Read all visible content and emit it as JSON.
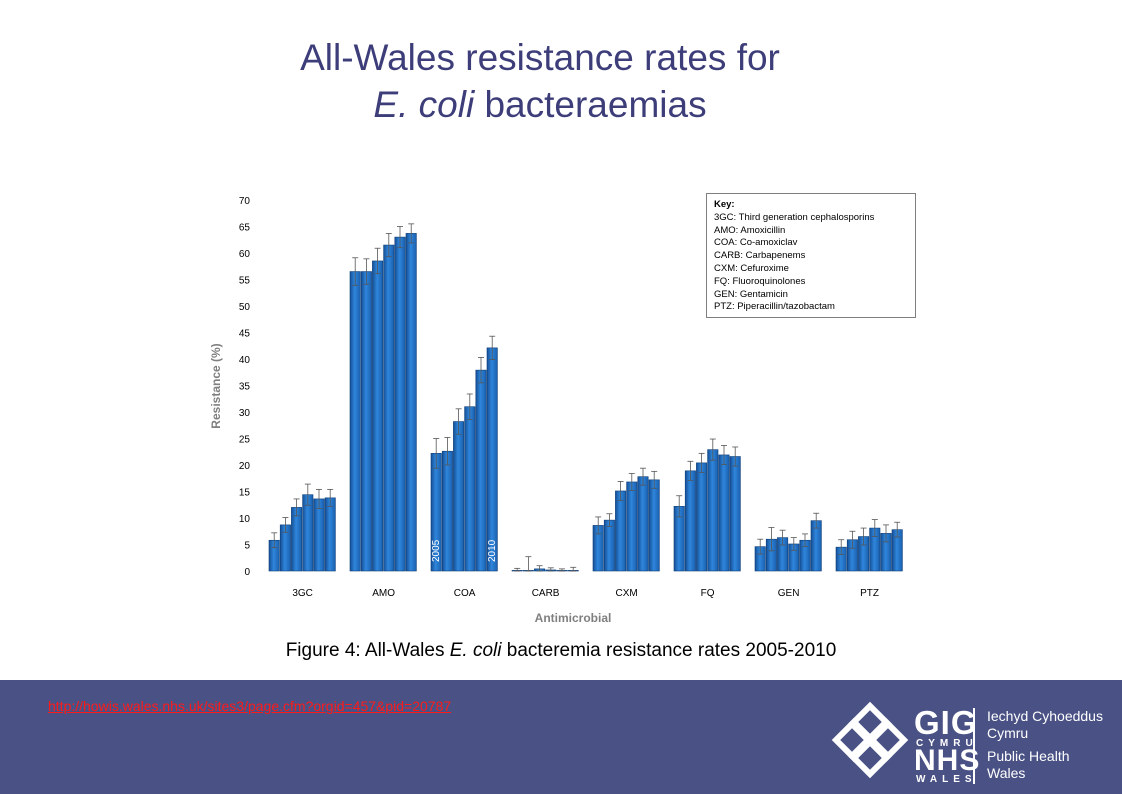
{
  "slide": {
    "title_line1": "All-Wales resistance rates for",
    "title_italic": "E. coli",
    "title_rest": " bacteraemias",
    "caption_prefix": "Figure 4: All-Wales ",
    "caption_italic": "E. coli",
    "caption_rest": " bacteremia resistance rates 2005-2010",
    "link": "http://howis.wales.nhs.uk/sites3/page.cfm?orgid=457&pid=20787"
  },
  "key": {
    "title": "Key:",
    "items": [
      "3GC: Third generation cephalosporins",
      "AMO: Amoxicillin",
      "COA: Co-amoxiclav",
      "CARB: Carbapenems",
      "CXM: Cefuroxime",
      "FQ: Fluoroquinolones",
      "GEN: Gentamicin",
      "PTZ: Piperacillin/tazobactam"
    ]
  },
  "logo": {
    "gig": "GIG",
    "cymru": "CYMRU",
    "nhs": "NHS",
    "wales": "WALES",
    "right_lines": [
      "Iechyd Cyhoeddus",
      "Cymru",
      "Public Health",
      "Wales"
    ]
  },
  "colors": {
    "bar": "#1f6fc4",
    "bar_light": "#5aa0e6",
    "title": "#3d3d7a",
    "footer": "#4a5285",
    "link": "#ff1a1a"
  },
  "chart_data": {
    "type": "bar",
    "xlabel": "Antimicrobial",
    "ylabel": "Resistance (%)",
    "ylim": [
      0,
      70
    ],
    "yticks": [
      0,
      5,
      10,
      15,
      20,
      25,
      30,
      35,
      40,
      45,
      50,
      55,
      60,
      65,
      70
    ],
    "grid": false,
    "categories": [
      "3GC",
      "AMO",
      "COA",
      "CARB",
      "CXM",
      "FQ",
      "GEN",
      "PTZ"
    ],
    "year_labels": [
      "2005",
      "2010"
    ],
    "series": [
      {
        "name": "2005",
        "values": [
          5.8,
          56.5,
          22.2,
          0.1,
          8.6,
          12.2,
          4.6,
          4.5
        ]
      },
      {
        "name": "",
        "values": [
          8.7,
          56.5,
          22.6,
          0.1,
          9.6,
          18.9,
          6.0,
          5.9
        ]
      },
      {
        "name": "",
        "values": [
          12.0,
          58.5,
          28.2,
          0.4,
          15.1,
          20.4,
          6.3,
          6.5
        ]
      },
      {
        "name": "",
        "values": [
          14.4,
          61.5,
          31.0,
          0.2,
          16.8,
          22.9,
          5.1,
          8.1
        ]
      },
      {
        "name": "",
        "values": [
          13.6,
          63.0,
          37.9,
          0.1,
          17.8,
          21.9,
          5.8,
          7.1
        ]
      },
      {
        "name": "2010",
        "values": [
          13.8,
          63.7,
          42.1,
          0.1,
          17.2,
          21.6,
          9.5,
          7.8
        ]
      }
    ],
    "errors": [
      [
        1.4,
        1.4,
        1.6,
        2.0,
        1.8,
        1.6
      ],
      [
        2.6,
        2.4,
        2.4,
        2.2,
        2.0,
        1.8
      ],
      [
        2.8,
        2.6,
        2.4,
        2.4,
        2.4,
        2.2
      ],
      [
        0.4,
        2.6,
        0.6,
        0.4,
        0.3,
        0.6
      ],
      [
        1.6,
        1.2,
        1.8,
        1.6,
        1.6,
        1.6
      ],
      [
        2.0,
        1.8,
        1.8,
        2.0,
        1.8,
        1.8
      ],
      [
        1.4,
        2.2,
        1.4,
        1.2,
        1.2,
        1.4
      ],
      [
        1.4,
        1.6,
        1.6,
        1.6,
        1.6,
        1.4
      ]
    ]
  }
}
